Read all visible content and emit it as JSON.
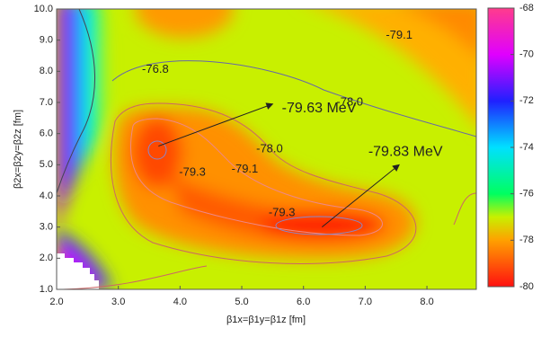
{
  "chart_data": {
    "type": "heatmap",
    "xlabel": "β1x=β1y=β1z [fm]",
    "ylabel": "β2x=β2y=β2z [fm]",
    "xlim": [
      2.0,
      8.8
    ],
    "ylim": [
      1.0,
      10.0
    ],
    "xticks": [
      {
        "value": 2,
        "label": "2.0"
      },
      {
        "value": 3,
        "label": "3.0"
      },
      {
        "value": 4,
        "label": "4.0"
      },
      {
        "value": 5,
        "label": "5.0"
      },
      {
        "value": 6,
        "label": "6.0"
      },
      {
        "value": 7,
        "label": "7.0"
      },
      {
        "value": 8,
        "label": "8.0"
      }
    ],
    "yticks": [
      {
        "value": 1,
        "label": "1.0"
      },
      {
        "value": 2,
        "label": "2.0"
      },
      {
        "value": 3,
        "label": "3.0"
      },
      {
        "value": 4,
        "label": "4.0"
      },
      {
        "value": 5,
        "label": "5.0"
      },
      {
        "value": 6,
        "label": "6.0"
      },
      {
        "value": 7,
        "label": "7.0"
      },
      {
        "value": 8,
        "label": "8.0"
      },
      {
        "value": 9,
        "label": "9.0"
      },
      {
        "value": 10,
        "label": "10.0"
      }
    ],
    "colorbar": {
      "lim": [
        -80,
        -68
      ],
      "ticks": [
        -68,
        -70,
        -72,
        -74,
        -76,
        -78,
        -80
      ],
      "stops": [
        {
          "value": -68,
          "color": "#ff3c8c"
        },
        {
          "value": -70,
          "color": "#e000ff"
        },
        {
          "value": -72,
          "color": "#2020ff"
        },
        {
          "value": -74,
          "color": "#00e0ff"
        },
        {
          "value": -76,
          "color": "#00ff60"
        },
        {
          "value": -77,
          "color": "#c8f000"
        },
        {
          "value": -78,
          "color": "#ffa000"
        },
        {
          "value": -80,
          "color": "#ff1010"
        }
      ]
    },
    "annotations": [
      {
        "text": "-76.8",
        "x": 3.6,
        "y": 8.05
      },
      {
        "text": "-79.1",
        "x": 7.55,
        "y": 9.15
      },
      {
        "text": "-78.0",
        "x": 6.75,
        "y": 7.0
      },
      {
        "text": "-78.0",
        "x": 5.45,
        "y": 5.5
      },
      {
        "text": "-79.3",
        "x": 4.2,
        "y": 4.75
      },
      {
        "text": "-79.1",
        "x": 5.05,
        "y": 4.85
      },
      {
        "text": "-79.3",
        "x": 5.65,
        "y": 3.45
      }
    ],
    "minima": [
      {
        "text": "-79.63 MeV",
        "x": 5.65,
        "y": 6.8,
        "arrow_from": [
          3.65,
          5.6
        ],
        "arrow_to": [
          5.5,
          6.95
        ]
      },
      {
        "text": "-79.83 MeV",
        "x": 7.05,
        "y": 5.4,
        "arrow_from": [
          6.3,
          3.0
        ],
        "arrow_to": [
          7.55,
          5.0
        ]
      }
    ]
  }
}
